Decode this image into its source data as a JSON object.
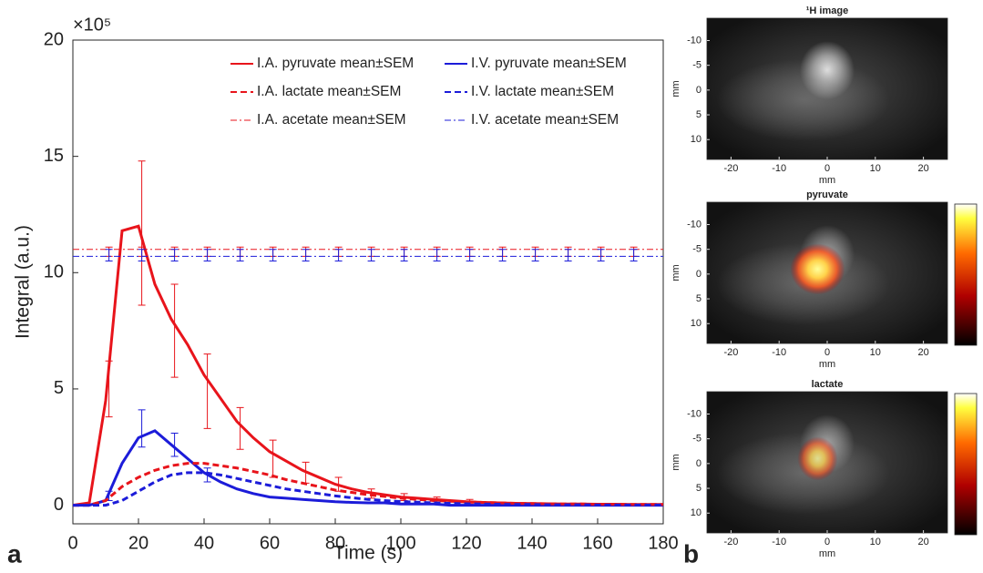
{
  "panel_labels": [
    "a",
    "b"
  ],
  "chart_data": [
    {
      "type": "line",
      "y_multiplier": "×10⁵",
      "xlabel": "Time (s)",
      "ylabel": "Integral (a.u.)",
      "xlim": [
        0,
        180
      ],
      "ylim": [
        -0.8,
        20
      ],
      "xticks": [
        0,
        20,
        40,
        60,
        80,
        100,
        120,
        140,
        160,
        180
      ],
      "yticks": [
        0,
        5,
        10,
        15,
        20
      ],
      "legend": "upper right",
      "x": [
        0,
        5,
        10,
        15,
        20,
        25,
        30,
        35,
        40,
        45,
        50,
        55,
        60,
        65,
        70,
        75,
        80,
        85,
        90,
        95,
        100,
        105,
        110,
        115,
        120,
        125,
        130,
        135,
        140,
        145,
        150,
        155,
        160,
        165,
        170,
        175,
        180
      ],
      "series": [
        {
          "name": "I.A. pyruvate mean±SEM",
          "color": "#e8141b",
          "style": "solid",
          "width": 3,
          "values": [
            0,
            0.1,
            4.5,
            11.8,
            12.0,
            9.5,
            8.0,
            6.9,
            5.6,
            4.6,
            3.6,
            2.9,
            2.3,
            1.9,
            1.5,
            1.2,
            0.9,
            0.7,
            0.55,
            0.45,
            0.35,
            0.3,
            0.25,
            0.2,
            0.15,
            0.12,
            0.1,
            0.08,
            0.07,
            0.06,
            0.05,
            0.05,
            0.04,
            0.04,
            0.03,
            0.03,
            0.03
          ],
          "error_bars": {
            "x": [
              11,
              21,
              31,
              41,
              51,
              61,
              71,
              81,
              91,
              101,
              111,
              121
            ],
            "values": [
              5,
              11.7,
              7.5,
              4.9,
              3.3,
              2.0,
              1.4,
              0.9,
              0.5,
              0.35,
              0.25,
              0.15
            ],
            "errors": [
              1.2,
              3.1,
              2.0,
              1.6,
              0.9,
              0.8,
              0.45,
              0.3,
              0.2,
              0.15,
              0.1,
              0.1
            ]
          }
        },
        {
          "name": "I.V. pyruvate mean±SEM",
          "color": "#1c1cd9",
          "style": "solid",
          "width": 3,
          "values": [
            0,
            0,
            0.2,
            1.8,
            2.9,
            3.2,
            2.6,
            2.0,
            1.4,
            1.0,
            0.7,
            0.5,
            0.35,
            0.3,
            0.25,
            0.2,
            0.15,
            0.12,
            0.1,
            0.1,
            0.05,
            0.05,
            0.05,
            0,
            0,
            0,
            0,
            0,
            0,
            0,
            0,
            0,
            0,
            0,
            0,
            0,
            0
          ],
          "error_bars": {
            "x": [
              11,
              21,
              31,
              41
            ],
            "values": [
              0.4,
              3.3,
              2.6,
              1.3
            ],
            "errors": [
              0.2,
              0.8,
              0.5,
              0.3
            ]
          }
        },
        {
          "name": "I.A. lactate mean±SEM",
          "color": "#e8141b",
          "style": "dashed",
          "width": 3,
          "values": [
            0,
            0,
            0.2,
            0.8,
            1.2,
            1.5,
            1.7,
            1.8,
            1.8,
            1.7,
            1.6,
            1.45,
            1.3,
            1.1,
            0.95,
            0.8,
            0.65,
            0.55,
            0.45,
            0.38,
            0.3,
            0.25,
            0.2,
            0.17,
            0.14,
            0.12,
            0.1,
            0.08,
            0.07,
            0.06,
            0.05,
            0.05,
            0.04,
            0.04,
            0.03,
            0.03,
            0.03
          ]
        },
        {
          "name": "I.V. lactate mean±SEM",
          "color": "#1c1cd9",
          "style": "dashed",
          "width": 3,
          "values": [
            0,
            0,
            0,
            0.2,
            0.6,
            1.0,
            1.3,
            1.4,
            1.4,
            1.3,
            1.15,
            1.0,
            0.85,
            0.7,
            0.6,
            0.5,
            0.4,
            0.32,
            0.25,
            0.2,
            0.16,
            0.13,
            0.1,
            0.08,
            0.06,
            0.05,
            0.04,
            0.03,
            0.03,
            0.02,
            0.02,
            0.02,
            0.01,
            0.01,
            0.01,
            0.01,
            0.01
          ]
        },
        {
          "name": "I.A. acetate mean±SEM",
          "color": "#e8141b",
          "style": "dashdot",
          "width": 1,
          "values": [
            11.0,
            11.0,
            11.0,
            11.0,
            11.0,
            11.0,
            11.0,
            11.0,
            11.0,
            11.0,
            11.0,
            11.0,
            11.0,
            11.0,
            11.0,
            11.0,
            11.0,
            11.0,
            11.0,
            11.0,
            11.0,
            11.0,
            11.0,
            11.0,
            11.0,
            11.0,
            11.0,
            11.0,
            11.0,
            11.0,
            11.0,
            11.0,
            11.0,
            11.0,
            11.0,
            11.0,
            11.0
          ],
          "error_bars": {
            "x": [
              11,
              21,
              31,
              41,
              51,
              61,
              71,
              81,
              91,
              101,
              111,
              121,
              131,
              141,
              151,
              161,
              171
            ],
            "values": [
              10.9,
              10.9,
              10.9,
              10.9,
              10.9,
              10.9,
              10.9,
              10.9,
              10.9,
              10.9,
              10.9,
              10.9,
              10.9,
              10.9,
              10.9,
              10.9,
              10.9
            ],
            "errors": [
              0.2,
              0.2,
              0.2,
              0.2,
              0.2,
              0.2,
              0.2,
              0.2,
              0.2,
              0.2,
              0.2,
              0.2,
              0.2,
              0.2,
              0.2,
              0.2,
              0.2
            ]
          }
        },
        {
          "name": "I.V. acetate mean±SEM",
          "color": "#1c1cd9",
          "style": "dashdot",
          "width": 1,
          "values": [
            10.7,
            10.7,
            10.7,
            10.7,
            10.7,
            10.7,
            10.7,
            10.7,
            10.7,
            10.7,
            10.7,
            10.7,
            10.7,
            10.7,
            10.7,
            10.7,
            10.7,
            10.7,
            10.7,
            10.7,
            10.7,
            10.7,
            10.7,
            10.7,
            10.7,
            10.7,
            10.7,
            10.7,
            10.7,
            10.7,
            10.7,
            10.7,
            10.7,
            10.7,
            10.7,
            10.7,
            10.7
          ],
          "error_bars": {
            "x": [
              11,
              21,
              31,
              41,
              51,
              61,
              71,
              81,
              91,
              101,
              111,
              121,
              131,
              141,
              151,
              161,
              171
            ],
            "values": [
              10.75,
              10.75,
              10.75,
              10.75,
              10.75,
              10.75,
              10.75,
              10.75,
              10.75,
              10.75,
              10.75,
              10.75,
              10.75,
              10.75,
              10.75,
              10.75,
              10.75
            ],
            "errors": [
              0.25,
              0.25,
              0.25,
              0.25,
              0.25,
              0.25,
              0.25,
              0.25,
              0.25,
              0.25,
              0.25,
              0.25,
              0.25,
              0.25,
              0.25,
              0.25,
              0.25
            ]
          }
        }
      ]
    },
    {
      "type": "image",
      "title": "¹H image",
      "xlabel": "mm",
      "ylabel": "mm",
      "overlay": false,
      "colorbar": false,
      "xlim": [
        -25,
        25
      ],
      "ylim": [
        14,
        -14.5
      ],
      "xticks": [
        -20,
        -10,
        0,
        10,
        20
      ],
      "yticks": [
        -10,
        -5,
        0,
        5,
        10
      ]
    },
    {
      "type": "image",
      "title": "pyruvate",
      "xlabel": "mm",
      "ylabel": "mm",
      "overlay": true,
      "colorbar": true,
      "xlim": [
        -25,
        25
      ],
      "ylim": [
        14,
        -14.5
      ],
      "xticks": [
        -20,
        -10,
        0,
        10,
        20
      ],
      "yticks": [
        -10,
        -5,
        0,
        5,
        10
      ]
    },
    {
      "type": "image",
      "title": "lactate",
      "xlabel": "mm",
      "ylabel": "mm",
      "overlay": true,
      "colorbar": true,
      "xlim": [
        -25,
        25
      ],
      "ylim": [
        14,
        -14.5
      ],
      "xticks": [
        -20,
        -10,
        0,
        10,
        20
      ],
      "yticks": [
        -10,
        -5,
        0,
        5,
        10
      ]
    }
  ]
}
